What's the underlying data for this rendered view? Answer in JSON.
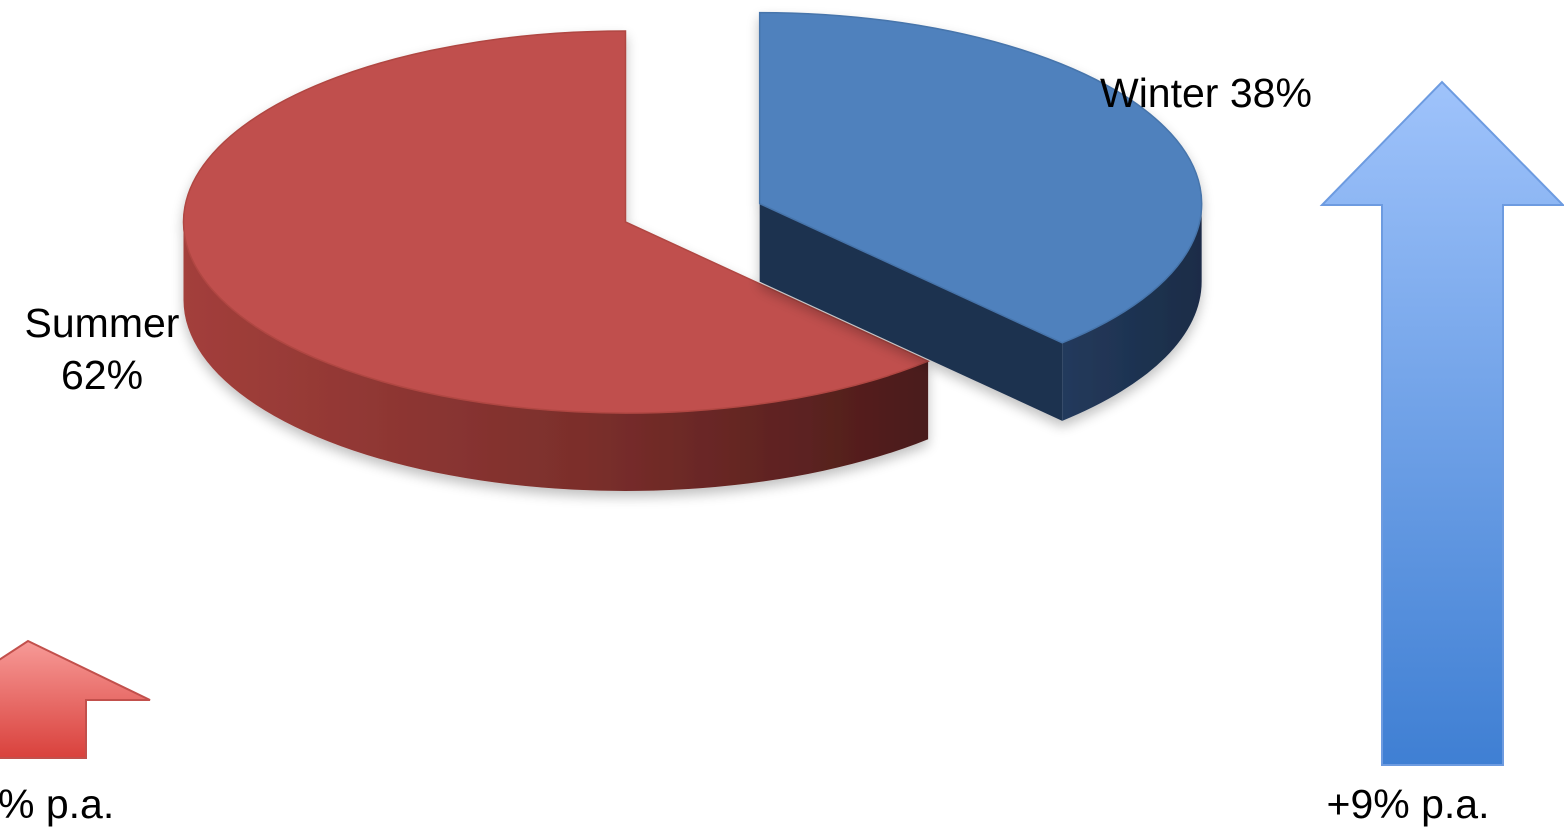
{
  "chart_data": {
    "type": "pie",
    "slices": [
      {
        "label": "Summer",
        "value": 62,
        "value_text": "62%",
        "color": "#c0504d"
      },
      {
        "label": "Winter",
        "value": 38,
        "value_text": "38%",
        "color": "#4f81bd"
      }
    ],
    "growth": [
      {
        "series": "Summer",
        "text": "% p.a.",
        "color": "#d9413c"
      },
      {
        "series": "Winter",
        "text": "+9% p.a.",
        "color": "#3f7fd3"
      }
    ]
  }
}
